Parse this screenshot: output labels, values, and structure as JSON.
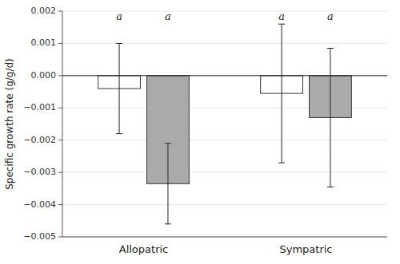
{
  "chart_data": {
    "type": "bar",
    "ylabel": "Specific growth rate (g/g/d)",
    "categories": [
      "Allopatric",
      "Sympatric"
    ],
    "series": [
      {
        "color": "#ffffff",
        "values": [
          -0.0004,
          -0.00055
        ],
        "errors": [
          0.0014,
          0.00215
        ]
      },
      {
        "color": "#aaaaaa",
        "values": [
          -0.00335,
          -0.0013
        ],
        "errors": [
          0.00125,
          0.00215
        ]
      }
    ],
    "annotations": [
      "a",
      "a",
      "a",
      "a"
    ],
    "ylim": [
      -0.005,
      0.002
    ],
    "yticks": [
      {
        "value": -0.005,
        "label": "−0.005"
      },
      {
        "value": -0.004,
        "label": "−0.004"
      },
      {
        "value": -0.003,
        "label": "−0.003"
      },
      {
        "value": -0.002,
        "label": "−0.002"
      },
      {
        "value": -0.001,
        "label": "−0.001"
      },
      {
        "value": 0.0,
        "label": "0.000"
      },
      0.001,
      0.002
    ]
  }
}
